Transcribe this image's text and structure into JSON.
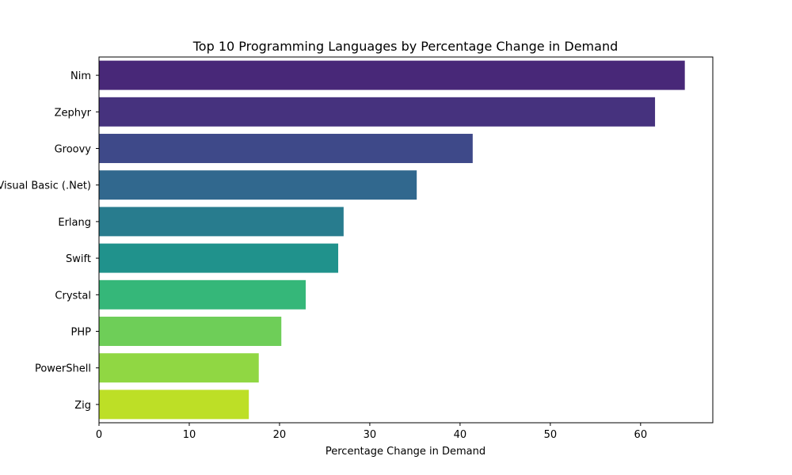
{
  "chart_data": {
    "type": "bar",
    "orientation": "horizontal",
    "title": "Top 10 Programming Languages by Percentage Change in Demand",
    "xlabel": "Percentage Change in Demand",
    "ylabel": "",
    "xlim": [
      0,
      68
    ],
    "x_ticks": [
      0,
      10,
      20,
      30,
      40,
      50,
      60
    ],
    "grid": false,
    "categories": [
      "Nim",
      "Zephyr",
      "Groovy",
      "Visual Basic (.Net)",
      "Erlang",
      "Swift",
      "Crystal",
      "PHP",
      "PowerShell",
      "Zig"
    ],
    "values": [
      64.9,
      61.6,
      41.4,
      35.2,
      27.1,
      26.5,
      22.9,
      20.2,
      17.7,
      16.6
    ],
    "colors": [
      "#482878",
      "#46327e",
      "#3e4989",
      "#31688e",
      "#287c8e",
      "#20928c",
      "#35b779",
      "#6ece58",
      "#90d743",
      "#bddf26"
    ]
  }
}
